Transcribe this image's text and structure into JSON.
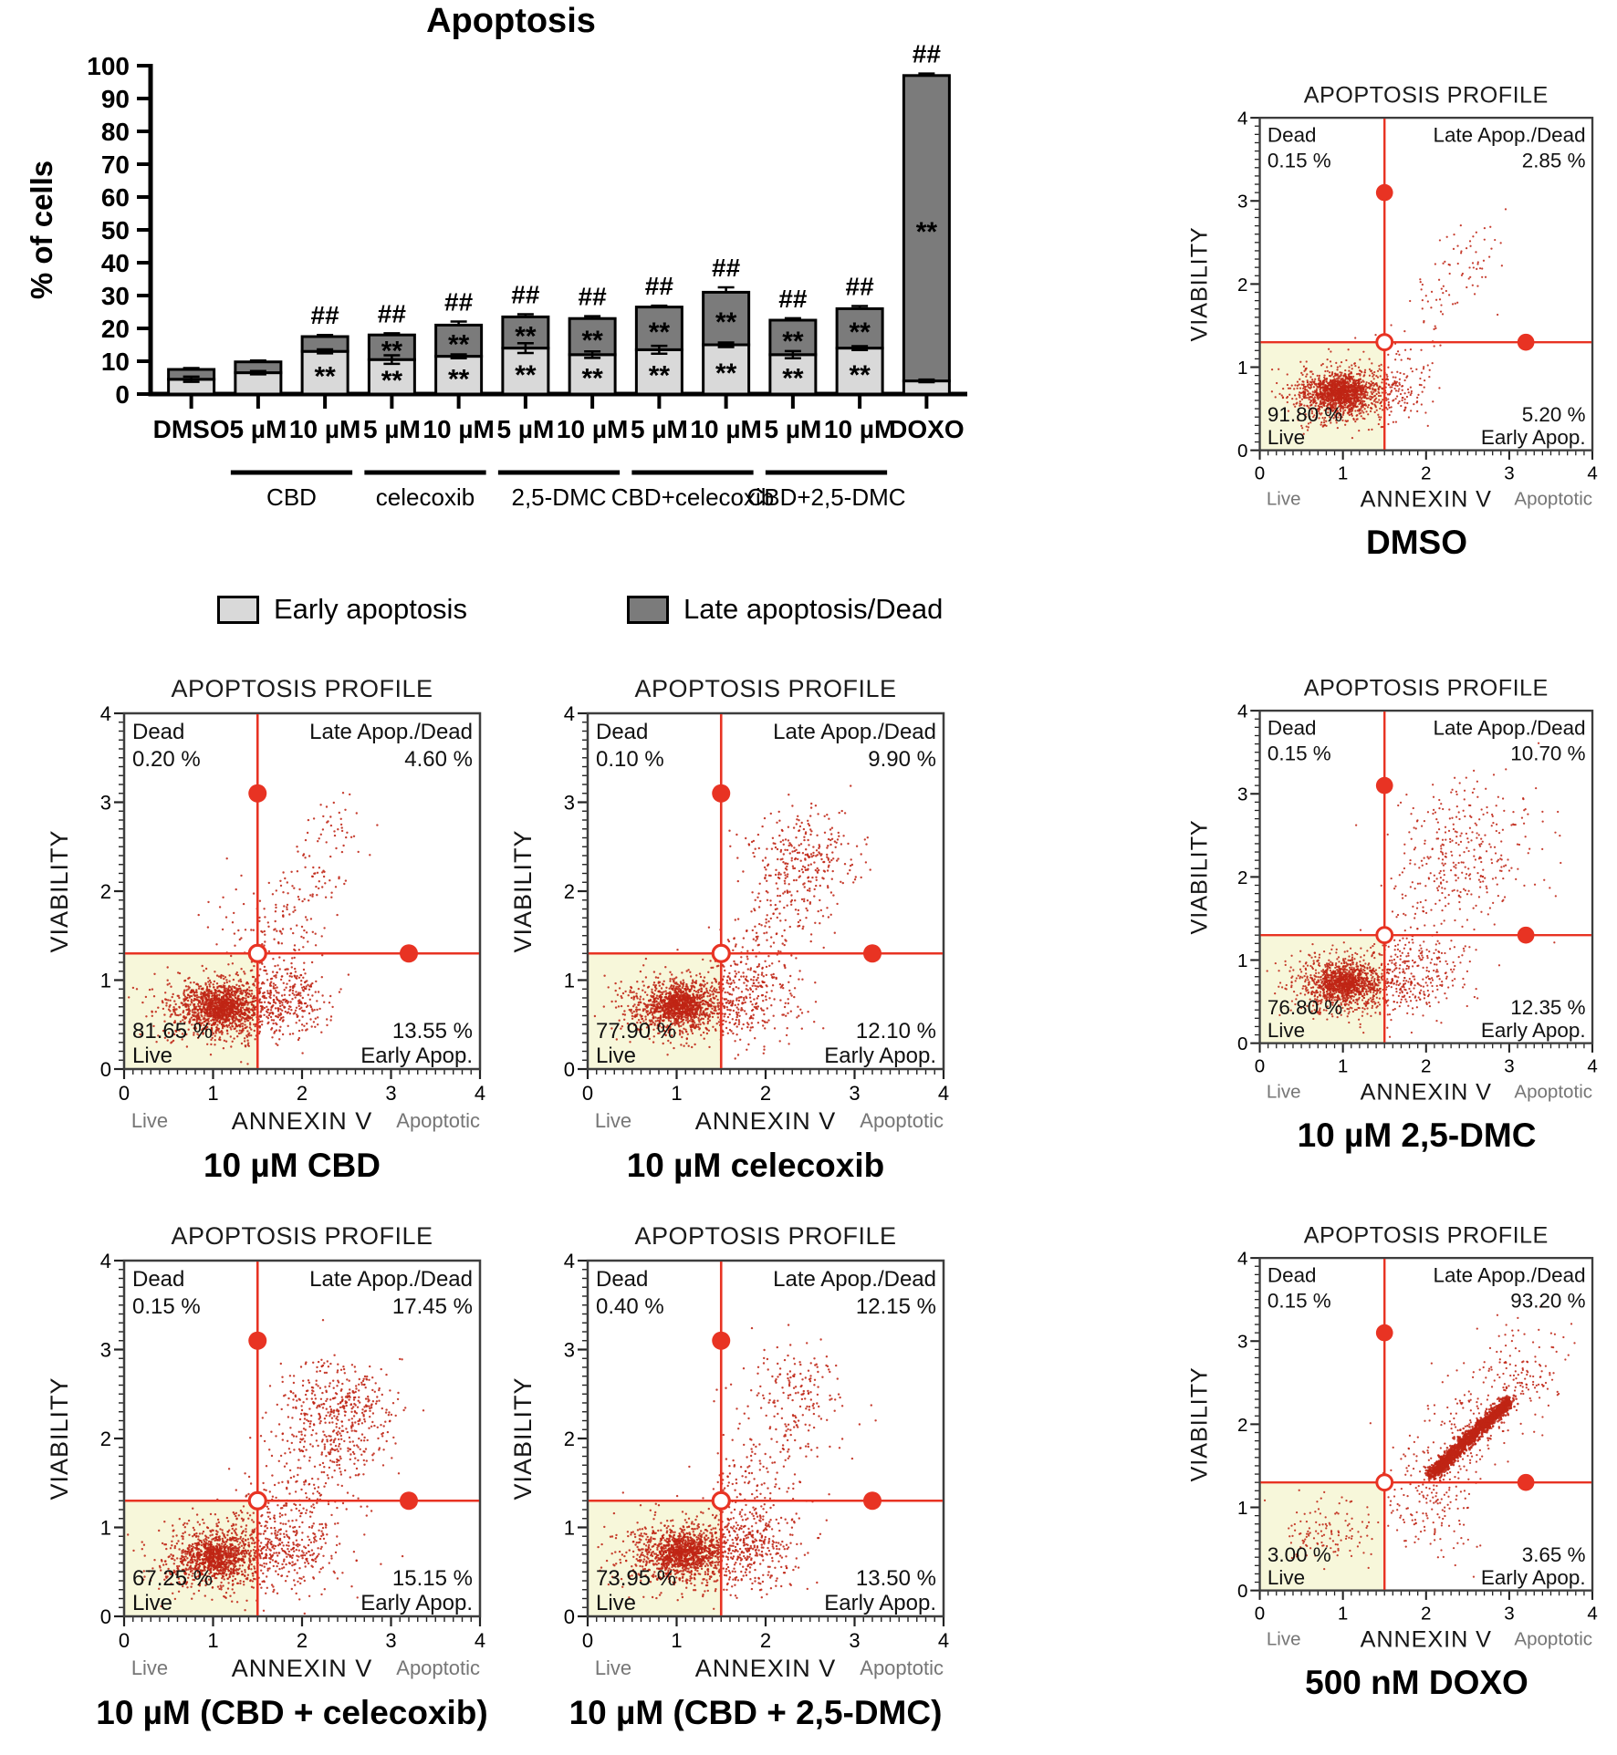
{
  "colors": {
    "early": "#d9d9d9",
    "late": "#7b7b7b",
    "bar_border": "#000000",
    "crosshair": "#e83323",
    "dots": "#bf2415",
    "quadrant_fill": "#f7f7da",
    "frame": "#3d3d3d",
    "text_dark": "#111111",
    "text_gray": "#767676"
  },
  "legend": {
    "items": [
      {
        "label": "Early apoptosis",
        "key": "early"
      },
      {
        "label": "Late apoptosis/Dead",
        "key": "late"
      }
    ]
  },
  "chart_data": [
    {
      "type": "bar",
      "stacked": true,
      "title": "Apoptosis",
      "ylabel": "% of cells",
      "ylim": [
        0,
        100
      ],
      "ytick_step": 10,
      "grid": false,
      "legend_position": "bottom",
      "categories": [
        "DMSO",
        "5 µM",
        "10 µM",
        "5 µM",
        "10 µM",
        "5 µM",
        "10 µM",
        "5 µM",
        "10 µM",
        "5 µM",
        "10 µM",
        "DOXO"
      ],
      "series": [
        {
          "name": "Early apoptosis",
          "values": [
            4.5,
            6.5,
            13,
            10.5,
            11.5,
            14,
            12,
            13.5,
            15,
            12,
            14,
            4
          ],
          "errors": [
            0.8,
            0.5,
            0.6,
            1.3,
            0.6,
            1.5,
            1.0,
            1.2,
            0.7,
            1.1,
            0.6,
            0.4
          ]
        },
        {
          "name": "Late apoptosis/Dead",
          "values": [
            3.0,
            3.3,
            4.5,
            7.5,
            9.5,
            9.5,
            11,
            13,
            16,
            10.5,
            12,
            93
          ],
          "errors": [
            0.4,
            0.4,
            0.5,
            0.5,
            1.1,
            0.8,
            0.7,
            0.4,
            1.5,
            0.6,
            0.8,
            0.6
          ]
        }
      ],
      "sig_early": [
        false,
        false,
        true,
        true,
        true,
        true,
        true,
        true,
        true,
        true,
        true,
        false
      ],
      "sig_late": [
        false,
        false,
        false,
        true,
        true,
        true,
        true,
        true,
        true,
        true,
        true,
        true
      ],
      "sig_top": [
        false,
        false,
        true,
        true,
        true,
        true,
        true,
        true,
        true,
        true,
        true,
        true
      ],
      "sig_symbols": {
        "section": "**",
        "top": "##"
      },
      "groups": [
        {
          "label": "CBD",
          "from": 1,
          "to": 2
        },
        {
          "label": "celecoxib",
          "from": 3,
          "to": 4
        },
        {
          "label": "2,5-DMC",
          "from": 5,
          "to": 6
        },
        {
          "label": "CBD+celecoxib",
          "from": 7,
          "to": 8
        },
        {
          "label": "CBD+2,5-DMC",
          "from": 9,
          "to": 10
        }
      ]
    },
    {
      "type": "scatter",
      "id": "dmso",
      "seed": 11,
      "title": "APOPTOSIS PROFILE",
      "caption": "DMSO",
      "xlabel": "ANNEXIN V",
      "ylabel": "VIABILITY",
      "x_hint_left": "Live",
      "x_hint_right": "Apoptotic",
      "xlim": [
        0,
        4
      ],
      "ylim": [
        0,
        4
      ],
      "ticks": [
        0,
        1,
        2,
        3,
        4
      ],
      "gate_x": 1.5,
      "gate_y": 1.3,
      "quadrants": {
        "dead": {
          "label": "Dead",
          "value": "0.15 %"
        },
        "late": {
          "label": "Late Apop./Dead",
          "value": "2.85 %"
        },
        "live": {
          "label": "Live",
          "value": "91.80 %"
        },
        "early": {
          "label": "Early Apop.",
          "value": "5.20 %"
        }
      },
      "clusters": [
        {
          "kind": "gauss",
          "n": 900,
          "cx": 0.95,
          "cy": 0.68,
          "sx": 0.3,
          "sy": 0.17
        },
        {
          "kind": "gauss",
          "n": 700,
          "cx": 0.98,
          "cy": 0.7,
          "sx": 0.15,
          "sy": 0.09
        },
        {
          "kind": "gauss",
          "n": 90,
          "cx": 1.65,
          "cy": 0.72,
          "sx": 0.18,
          "sy": 0.18
        },
        {
          "kind": "gauss",
          "n": 40,
          "cx": 1.6,
          "cy": 1.05,
          "sx": 0.3,
          "sy": 0.25
        },
        {
          "kind": "band",
          "n": 80,
          "x1": 1.9,
          "y1": 1.5,
          "x2": 2.9,
          "y2": 2.7,
          "jitter": 0.18
        }
      ]
    },
    {
      "type": "scatter",
      "id": "cbd",
      "seed": 22,
      "title": "APOPTOSIS PROFILE",
      "caption": "10 µM CBD",
      "xlabel": "ANNEXIN V",
      "ylabel": "VIABILITY",
      "x_hint_left": "Live",
      "x_hint_right": "Apoptotic",
      "xlim": [
        0,
        4
      ],
      "ylim": [
        0,
        4
      ],
      "ticks": [
        0,
        1,
        2,
        3,
        4
      ],
      "gate_x": 1.5,
      "gate_y": 1.3,
      "quadrants": {
        "dead": {
          "label": "Dead",
          "value": "0.20 %"
        },
        "late": {
          "label": "Late Apop./Dead",
          "value": "4.60 %"
        },
        "live": {
          "label": "Live",
          "value": "81.65 %"
        },
        "early": {
          "label": "Early Apop.",
          "value": "13.55 %"
        }
      },
      "clusters": [
        {
          "kind": "gauss",
          "n": 850,
          "cx": 1.05,
          "cy": 0.68,
          "sx": 0.32,
          "sy": 0.18
        },
        {
          "kind": "gauss",
          "n": 600,
          "cx": 1.08,
          "cy": 0.7,
          "sx": 0.16,
          "sy": 0.1
        },
        {
          "kind": "gauss",
          "n": 330,
          "cx": 1.8,
          "cy": 0.78,
          "sx": 0.28,
          "sy": 0.2
        },
        {
          "kind": "gauss",
          "n": 60,
          "cx": 1.5,
          "cy": 1.6,
          "sx": 0.3,
          "sy": 0.3
        },
        {
          "kind": "band",
          "n": 150,
          "x1": 1.6,
          "y1": 1.1,
          "x2": 2.5,
          "y2": 2.9,
          "jitter": 0.2
        }
      ]
    },
    {
      "type": "scatter",
      "id": "celecoxib",
      "seed": 33,
      "title": "APOPTOSIS PROFILE",
      "caption": "10 µM celecoxib",
      "xlabel": "ANNEXIN V",
      "ylabel": "VIABILITY",
      "x_hint_left": "Live",
      "x_hint_right": "Apoptotic",
      "xlim": [
        0,
        4
      ],
      "ylim": [
        0,
        4
      ],
      "ticks": [
        0,
        1,
        2,
        3,
        4
      ],
      "gate_x": 1.5,
      "gate_y": 1.3,
      "quadrants": {
        "dead": {
          "label": "Dead",
          "value": "0.10 %"
        },
        "late": {
          "label": "Late Apop./Dead",
          "value": "9.90 %"
        },
        "live": {
          "label": "Live",
          "value": "77.90 %"
        },
        "early": {
          "label": "Early Apop.",
          "value": "12.10 %"
        }
      },
      "clusters": [
        {
          "kind": "gauss",
          "n": 800,
          "cx": 1.0,
          "cy": 0.7,
          "sx": 0.3,
          "sy": 0.17
        },
        {
          "kind": "gauss",
          "n": 550,
          "cx": 1.03,
          "cy": 0.72,
          "sx": 0.15,
          "sy": 0.1
        },
        {
          "kind": "gauss",
          "n": 300,
          "cx": 1.8,
          "cy": 0.8,
          "sx": 0.3,
          "sy": 0.25
        },
        {
          "kind": "gauss",
          "n": 230,
          "cx": 2.35,
          "cy": 2.35,
          "sx": 0.3,
          "sy": 0.28
        },
        {
          "kind": "band",
          "n": 200,
          "x1": 1.7,
          "y1": 1.0,
          "x2": 2.8,
          "y2": 2.6,
          "jitter": 0.25
        }
      ]
    },
    {
      "type": "scatter",
      "id": "dmc",
      "seed": 44,
      "title": "APOPTOSIS PROFILE",
      "caption": "10 µM 2,5-DMC",
      "xlabel": "ANNEXIN V",
      "ylabel": "VIABILITY",
      "x_hint_left": "Live",
      "x_hint_right": "Apoptotic",
      "xlim": [
        0,
        4
      ],
      "ylim": [
        0,
        4
      ],
      "ticks": [
        0,
        1,
        2,
        3,
        4
      ],
      "gate_x": 1.5,
      "gate_y": 1.3,
      "quadrants": {
        "dead": {
          "label": "Dead",
          "value": "0.15 %"
        },
        "late": {
          "label": "Late Apop./Dead",
          "value": "10.70 %"
        },
        "live": {
          "label": "Live",
          "value": "76.80 %"
        },
        "early": {
          "label": "Early Apop.",
          "value": "12.35 %"
        }
      },
      "clusters": [
        {
          "kind": "gauss",
          "n": 800,
          "cx": 1.0,
          "cy": 0.7,
          "sx": 0.32,
          "sy": 0.18
        },
        {
          "kind": "gauss",
          "n": 550,
          "cx": 1.03,
          "cy": 0.72,
          "sx": 0.16,
          "sy": 0.1
        },
        {
          "kind": "gauss",
          "n": 300,
          "cx": 1.8,
          "cy": 0.8,
          "sx": 0.33,
          "sy": 0.25
        },
        {
          "kind": "gauss",
          "n": 260,
          "cx": 2.5,
          "cy": 2.4,
          "sx": 0.45,
          "sy": 0.38
        },
        {
          "kind": "band",
          "n": 110,
          "x1": 1.7,
          "y1": 1.1,
          "x2": 2.7,
          "y2": 2.7,
          "jitter": 0.3
        }
      ]
    },
    {
      "type": "scatter",
      "id": "cbd_celecoxib",
      "seed": 55,
      "title": "APOPTOSIS PROFILE",
      "caption": "10 µM (CBD + celecoxib)",
      "xlabel": "ANNEXIN V",
      "ylabel": "VIABILITY",
      "x_hint_left": "Live",
      "x_hint_right": "Apoptotic",
      "xlim": [
        0,
        4
      ],
      "ylim": [
        0,
        4
      ],
      "ticks": [
        0,
        1,
        2,
        3,
        4
      ],
      "gate_x": 1.5,
      "gate_y": 1.3,
      "quadrants": {
        "dead": {
          "label": "Dead",
          "value": "0.15 %"
        },
        "late": {
          "label": "Late Apop./Dead",
          "value": "17.45 %"
        },
        "live": {
          "label": "Live",
          "value": "67.25 %"
        },
        "early": {
          "label": "Early Apop.",
          "value": "15.15 %"
        }
      },
      "clusters": [
        {
          "kind": "gauss",
          "n": 700,
          "cx": 1.0,
          "cy": 0.65,
          "sx": 0.32,
          "sy": 0.19
        },
        {
          "kind": "gauss",
          "n": 450,
          "cx": 1.02,
          "cy": 0.67,
          "sx": 0.16,
          "sy": 0.1
        },
        {
          "kind": "gauss",
          "n": 420,
          "cx": 1.75,
          "cy": 0.78,
          "sx": 0.35,
          "sy": 0.26
        },
        {
          "kind": "gauss",
          "n": 380,
          "cx": 2.4,
          "cy": 2.35,
          "sx": 0.33,
          "sy": 0.28
        },
        {
          "kind": "band",
          "n": 230,
          "x1": 1.8,
          "y1": 1.3,
          "x2": 2.5,
          "y2": 2.1,
          "jitter": 0.3
        }
      ]
    },
    {
      "type": "scatter",
      "id": "cbd_dmc",
      "seed": 66,
      "title": "APOPTOSIS PROFILE",
      "caption": "10 µM (CBD + 2,5-DMC)",
      "xlabel": "ANNEXIN V",
      "ylabel": "VIABILITY",
      "x_hint_left": "Live",
      "x_hint_right": "Apoptotic",
      "xlim": [
        0,
        4
      ],
      "ylim": [
        0,
        4
      ],
      "ticks": [
        0,
        1,
        2,
        3,
        4
      ],
      "gate_x": 1.5,
      "gate_y": 1.3,
      "quadrants": {
        "dead": {
          "label": "Dead",
          "value": "0.40 %"
        },
        "late": {
          "label": "Late Apop./Dead",
          "value": "12.15 %"
        },
        "live": {
          "label": "Live",
          "value": "73.95 %"
        },
        "early": {
          "label": "Early Apop.",
          "value": "13.50 %"
        }
      },
      "clusters": [
        {
          "kind": "gauss",
          "n": 780,
          "cx": 1.05,
          "cy": 0.7,
          "sx": 0.33,
          "sy": 0.19
        },
        {
          "kind": "gauss",
          "n": 520,
          "cx": 1.08,
          "cy": 0.72,
          "sx": 0.17,
          "sy": 0.1
        },
        {
          "kind": "gauss",
          "n": 380,
          "cx": 1.8,
          "cy": 0.78,
          "sx": 0.33,
          "sy": 0.24
        },
        {
          "kind": "gauss",
          "n": 70,
          "cx": 2.3,
          "cy": 2.5,
          "sx": 0.3,
          "sy": 0.3
        },
        {
          "kind": "band",
          "n": 260,
          "x1": 1.7,
          "y1": 1.2,
          "x2": 2.6,
          "y2": 2.8,
          "jitter": 0.28
        }
      ]
    },
    {
      "type": "scatter",
      "id": "doxo",
      "seed": 77,
      "title": "APOPTOSIS PROFILE",
      "caption": "500 nM DOXO",
      "xlabel": "ANNEXIN V",
      "ylabel": "VIABILITY",
      "x_hint_left": "Live",
      "x_hint_right": "Apoptotic",
      "xlim": [
        0,
        4
      ],
      "ylim": [
        0,
        4
      ],
      "ticks": [
        0,
        1,
        2,
        3,
        4
      ],
      "gate_x": 1.5,
      "gate_y": 1.3,
      "quadrants": {
        "dead": {
          "label": "Dead",
          "value": "0.15 %"
        },
        "late": {
          "label": "Late Apop./Dead",
          "value": "93.20 %"
        },
        "live": {
          "label": "Live",
          "value": "3.00 %"
        },
        "early": {
          "label": "Early Apop.",
          "value": "3.65 %"
        }
      },
      "clusters": [
        {
          "kind": "gauss",
          "n": 120,
          "cx": 0.8,
          "cy": 0.7,
          "sx": 0.3,
          "sy": 0.2
        },
        {
          "kind": "band",
          "n": 1500,
          "x1": 2.05,
          "y1": 1.38,
          "x2": 3.0,
          "y2": 2.28,
          "jitter": 0.04,
          "r": 1.4
        },
        {
          "kind": "band",
          "n": 320,
          "x1": 1.9,
          "y1": 1.15,
          "x2": 3.25,
          "y2": 2.85,
          "jitter": 0.28
        },
        {
          "kind": "gauss",
          "n": 110,
          "cx": 2.0,
          "cy": 0.95,
          "sx": 0.28,
          "sy": 0.3
        },
        {
          "kind": "gauss",
          "n": 30,
          "cx": 3.3,
          "cy": 2.6,
          "sx": 0.2,
          "sy": 0.3
        }
      ]
    }
  ]
}
